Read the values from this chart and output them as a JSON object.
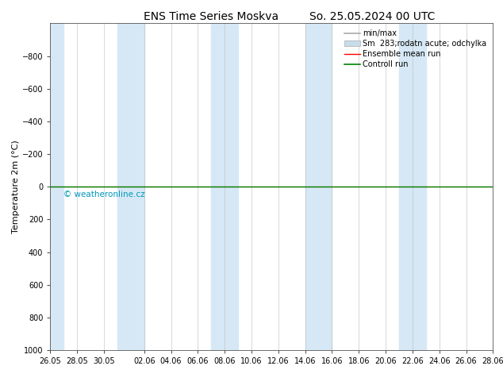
{
  "title": "ENS Time Series Moskva",
  "title2": "So. 25.05.2024 00 UTC",
  "ylabel": "Temperature 2m (°C)",
  "ylim_bottom": 1000,
  "ylim_top": -1000,
  "yticks": [
    -800,
    -600,
    -400,
    -200,
    0,
    200,
    400,
    600,
    800,
    1000
  ],
  "x_labels": [
    "26.05",
    "28.05",
    "30.05",
    "02.06",
    "04.06",
    "06.06",
    "08.06",
    "10.06",
    "12.06",
    "14.06",
    "16.06",
    "18.06",
    "20.06",
    "22.06",
    "24.06",
    "26.06",
    "28.06"
  ],
  "x_positions": [
    0,
    2,
    4,
    7,
    9,
    11,
    13,
    15,
    17,
    19,
    21,
    23,
    25,
    27,
    29,
    31,
    33
  ],
  "x_min": 0,
  "x_max": 33,
  "zero_line_y": 0,
  "control_run_color": "#008000",
  "ensemble_mean_color": "#ff0000",
  "watermark": "© weatheronline.cz",
  "watermark_color": "#0099bb",
  "background_color": "#ffffff",
  "plot_bg_color": "#ffffff",
  "band_color": "#d6e8f5",
  "band_pairs": [
    [
      0,
      1.0
    ],
    [
      5.0,
      7.0
    ],
    [
      12.0,
      14.0
    ],
    [
      19.0,
      21.0
    ],
    [
      26.0,
      28.0
    ]
  ],
  "legend_minmax_color": "#aaaaaa",
  "legend_spread_color": "#c8dcea",
  "title_fontsize": 10,
  "axis_label_fontsize": 8,
  "tick_fontsize": 7,
  "legend_fontsize": 7
}
